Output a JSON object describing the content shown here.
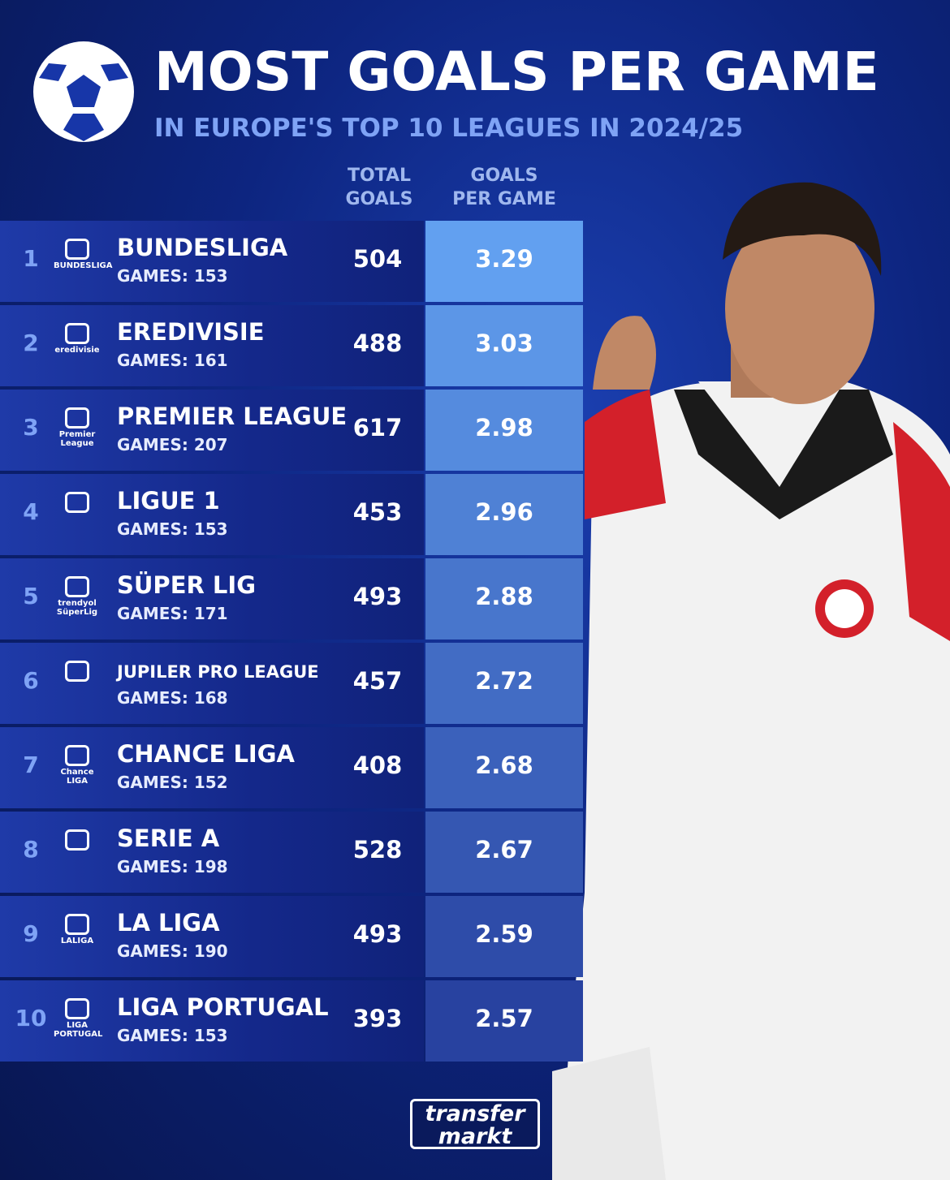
{
  "header": {
    "title": "MOST GOALS PER GAME",
    "subtitle": "IN EUROPE'S TOP 10 LEAGUES IN 2024/25"
  },
  "table": {
    "columns": [
      "TOTAL GOALS",
      "GOALS PER GAME"
    ],
    "rows": [
      {
        "rank": 1,
        "logo": "BUNDESLIGA",
        "league": "BUNDESLIGA",
        "games": "GAMES: 153",
        "total_goals": 504,
        "goals_per_game": 3.29
      },
      {
        "rank": 2,
        "logo": "eredivisie",
        "league": "EREDIVISIE",
        "games": "GAMES: 161",
        "total_goals": 488,
        "goals_per_game": 3.03
      },
      {
        "rank": 3,
        "logo": "Premier League",
        "league": "PREMIER LEAGUE",
        "games": "GAMES: 207",
        "total_goals": 617,
        "goals_per_game": 2.98
      },
      {
        "rank": 4,
        "league": "LIGUE 1",
        "games": "GAMES: 153",
        "total_goals": 453,
        "goals_per_game": 2.96
      },
      {
        "rank": 5,
        "logo": "trendyol SüperLig",
        "league": "SÜPER LIG",
        "games": "GAMES: 171",
        "total_goals": 493,
        "goals_per_game": 2.88
      },
      {
        "rank": 6,
        "league": "JUPILER PRO LEAGUE",
        "games": "GAMES: 168",
        "total_goals": 457,
        "goals_per_game": 2.72
      },
      {
        "rank": 7,
        "logo": "Chance LIGA",
        "league": "CHANCE LIGA",
        "games": "GAMES: 152",
        "total_goals": 408,
        "goals_per_game": 2.68
      },
      {
        "rank": 8,
        "league": "SERIE A",
        "games": "GAMES: 198",
        "total_goals": 528,
        "goals_per_game": 2.67
      },
      {
        "rank": 9,
        "logo": "LALIGA",
        "league": "LA LIGA",
        "games": "GAMES: 190",
        "total_goals": 493,
        "goals_per_game": 2.59
      },
      {
        "rank": 10,
        "logo": "LIGA PORTUGAL",
        "league": "LIGA PORTUGAL",
        "games": "GAMES: 153",
        "total_goals": 393,
        "goals_per_game": 2.57
      }
    ]
  },
  "footer": {
    "brand": [
      "transfer",
      "markt"
    ]
  }
}
